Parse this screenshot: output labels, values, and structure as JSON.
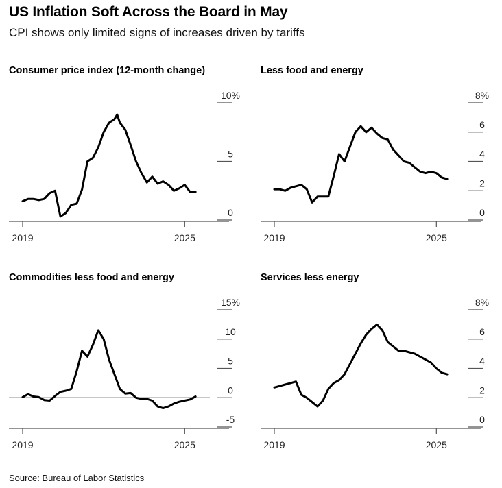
{
  "title": "US Inflation Soft Across the Board in May",
  "subtitle": "CPI shows only limited signs of increases driven by tariffs",
  "source": "Source: Bureau of Labor Statistics",
  "chart_data": [
    {
      "type": "line",
      "title": "Consumer price index (12-month change)",
      "ylim": [
        0,
        10
      ],
      "yticks": [
        0,
        5,
        10
      ],
      "ytick_labels": [
        "0",
        "5",
        "10%"
      ],
      "xlim": [
        2019,
        2025.5
      ],
      "xticks": [
        2019,
        2025
      ],
      "xtick_labels": [
        "2019",
        "2025"
      ],
      "zero_line": false,
      "series": [
        {
          "x": [
            2019.0,
            2019.2,
            2019.4,
            2019.6,
            2019.8,
            2020.0,
            2020.2,
            2020.4,
            2020.6,
            2020.8,
            2021.0,
            2021.2,
            2021.4,
            2021.6,
            2021.8,
            2022.0,
            2022.2,
            2022.4,
            2022.5,
            2022.6,
            2022.8,
            2023.0,
            2023.2,
            2023.4,
            2023.6,
            2023.8,
            2024.0,
            2024.2,
            2024.4,
            2024.6,
            2024.8,
            2025.0,
            2025.2,
            2025.4
          ],
          "y": [
            1.6,
            1.8,
            1.8,
            1.7,
            1.8,
            2.3,
            2.5,
            0.3,
            0.6,
            1.3,
            1.4,
            2.6,
            5.0,
            5.3,
            6.2,
            7.5,
            8.3,
            8.6,
            9.0,
            8.3,
            7.7,
            6.4,
            5.0,
            4.0,
            3.2,
            3.7,
            3.1,
            3.3,
            3.0,
            2.5,
            2.7,
            3.0,
            2.4,
            2.4
          ]
        }
      ]
    },
    {
      "type": "line",
      "title": "Less food and energy",
      "ylim": [
        0,
        8
      ],
      "yticks": [
        0,
        2,
        4,
        6,
        8
      ],
      "ytick_labels": [
        "0",
        "2",
        "4",
        "6",
        "8%"
      ],
      "xlim": [
        2019,
        2025.5
      ],
      "xticks": [
        2019,
        2025
      ],
      "xtick_labels": [
        "2019",
        "2025"
      ],
      "zero_line": false,
      "series": [
        {
          "x": [
            2019.0,
            2019.2,
            2019.4,
            2019.6,
            2019.8,
            2020.0,
            2020.2,
            2020.4,
            2020.6,
            2020.8,
            2021.0,
            2021.2,
            2021.4,
            2021.6,
            2021.8,
            2022.0,
            2022.2,
            2022.4,
            2022.6,
            2022.8,
            2023.0,
            2023.2,
            2023.4,
            2023.6,
            2023.8,
            2024.0,
            2024.2,
            2024.4,
            2024.6,
            2024.8,
            2025.0,
            2025.2,
            2025.4
          ],
          "y": [
            2.1,
            2.1,
            2.0,
            2.2,
            2.3,
            2.4,
            2.1,
            1.2,
            1.6,
            1.6,
            1.6,
            3.0,
            4.5,
            4.0,
            5.0,
            6.0,
            6.4,
            6.0,
            6.3,
            5.9,
            5.6,
            5.5,
            4.8,
            4.4,
            4.0,
            3.9,
            3.6,
            3.3,
            3.2,
            3.3,
            3.2,
            2.9,
            2.8
          ]
        }
      ]
    },
    {
      "type": "line",
      "title": "Commodities less food and energy",
      "ylim": [
        -5,
        15
      ],
      "yticks": [
        -5,
        0,
        5,
        10,
        15
      ],
      "ytick_labels": [
        "-5",
        "0",
        "5",
        "10",
        "15%"
      ],
      "xlim": [
        2019,
        2025.5
      ],
      "xticks": [
        2019,
        2025
      ],
      "xtick_labels": [
        "2019",
        "2025"
      ],
      "zero_line": true,
      "series": [
        {
          "x": [
            2019.0,
            2019.2,
            2019.4,
            2019.6,
            2019.8,
            2020.0,
            2020.2,
            2020.4,
            2020.6,
            2020.8,
            2021.0,
            2021.2,
            2021.4,
            2021.6,
            2021.8,
            2022.0,
            2022.2,
            2022.4,
            2022.6,
            2022.8,
            2023.0,
            2023.2,
            2023.4,
            2023.6,
            2023.8,
            2024.0,
            2024.2,
            2024.4,
            2024.6,
            2024.8,
            2025.0,
            2025.2,
            2025.4
          ],
          "y": [
            0.1,
            0.6,
            0.2,
            0.1,
            -0.4,
            -0.5,
            0.3,
            1.0,
            1.2,
            1.5,
            4.5,
            8.0,
            7.0,
            9.0,
            11.5,
            10.0,
            6.5,
            4.0,
            1.5,
            0.7,
            0.8,
            0.0,
            -0.2,
            -0.2,
            -0.5,
            -1.5,
            -1.8,
            -1.5,
            -1.0,
            -0.7,
            -0.5,
            -0.3,
            0.2
          ]
        }
      ]
    },
    {
      "type": "line",
      "title": "Services less energy",
      "ylim": [
        0,
        8
      ],
      "yticks": [
        0,
        2,
        4,
        6,
        8
      ],
      "ytick_labels": [
        "0",
        "2",
        "4",
        "6",
        "8%"
      ],
      "xlim": [
        2019,
        2025.5
      ],
      "xticks": [
        2019,
        2025
      ],
      "xtick_labels": [
        "2019",
        "2025"
      ],
      "zero_line": false,
      "series": [
        {
          "x": [
            2019.0,
            2019.2,
            2019.4,
            2019.6,
            2019.8,
            2020.0,
            2020.2,
            2020.4,
            2020.6,
            2020.8,
            2021.0,
            2021.2,
            2021.4,
            2021.6,
            2021.8,
            2022.0,
            2022.2,
            2022.4,
            2022.6,
            2022.8,
            2023.0,
            2023.2,
            2023.4,
            2023.6,
            2023.8,
            2024.0,
            2024.2,
            2024.4,
            2024.6,
            2024.8,
            2025.0,
            2025.2,
            2025.4
          ],
          "y": [
            2.7,
            2.8,
            2.9,
            3.0,
            3.1,
            2.2,
            2.0,
            1.7,
            1.4,
            1.8,
            2.6,
            3.0,
            3.2,
            3.6,
            4.3,
            5.0,
            5.7,
            6.3,
            6.7,
            7.0,
            6.6,
            5.8,
            5.5,
            5.2,
            5.2,
            5.1,
            5.0,
            4.8,
            4.6,
            4.4,
            4.0,
            3.7,
            3.6
          ]
        }
      ]
    }
  ]
}
